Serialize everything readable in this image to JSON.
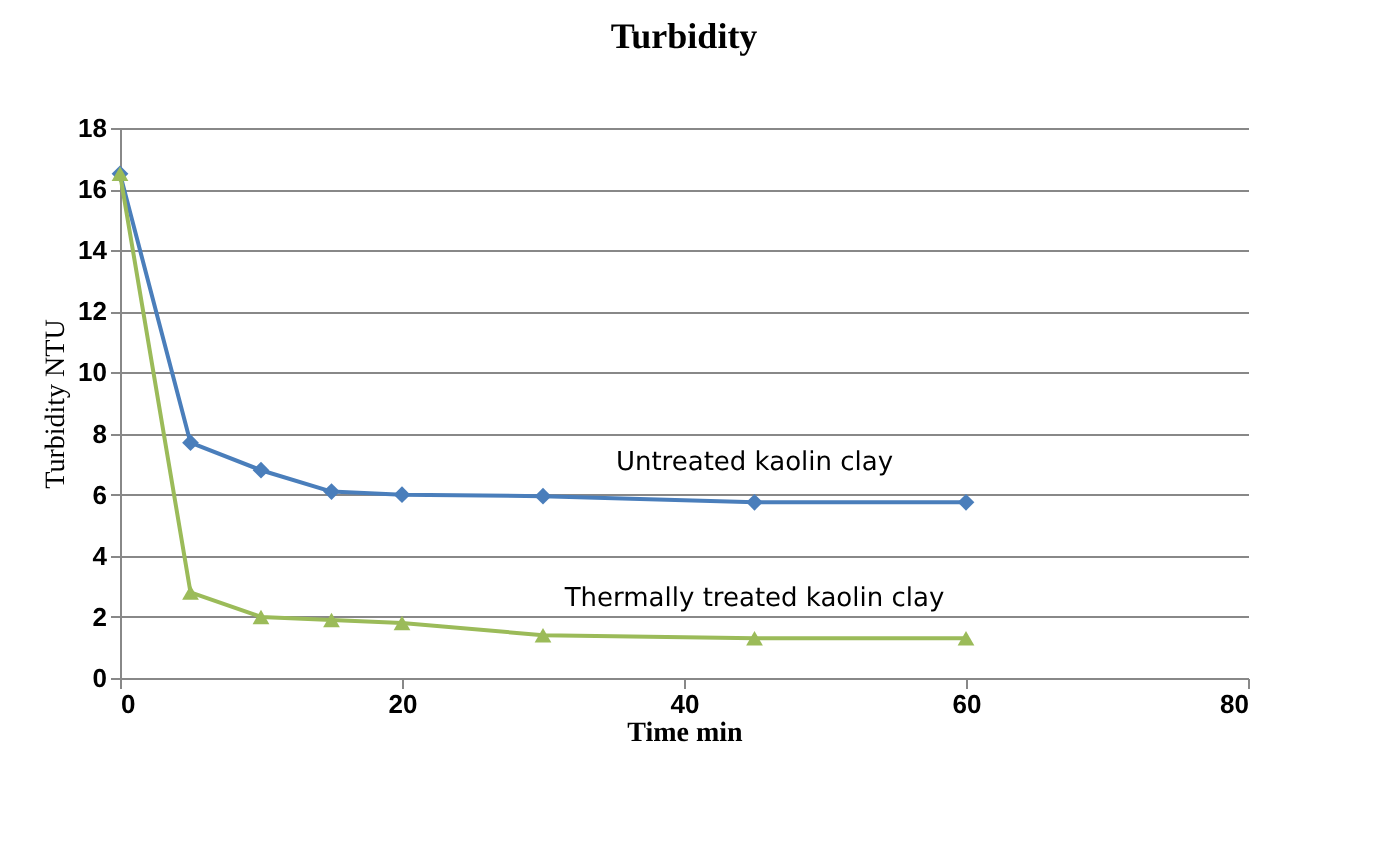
{
  "chart_data": {
    "type": "line",
    "title": "Turbidity",
    "xlabel": "Time min",
    "ylabel": "Turbidity NTU",
    "x": [
      0,
      5,
      10,
      15,
      20,
      30,
      45,
      60
    ],
    "series": [
      {
        "name": "Untreated kaolin clay",
        "color": "#4a7ebb",
        "marker": "diamond",
        "values": [
          16.5,
          7.7,
          6.8,
          6.1,
          6.0,
          5.95,
          5.75,
          5.75
        ]
      },
      {
        "name": "Thermally treated kaolin clay",
        "color": "#9bbb59",
        "marker": "triangle",
        "values": [
          16.5,
          2.8,
          2.0,
          1.9,
          1.8,
          1.4,
          1.3,
          1.3
        ]
      }
    ],
    "xlim": [
      0,
      80
    ],
    "xticks": [
      0,
      20,
      40,
      60,
      80
    ],
    "ylim": [
      0,
      18
    ],
    "yticks": [
      0,
      2,
      4,
      6,
      8,
      10,
      12,
      14,
      16,
      18
    ],
    "grid": "y",
    "legend": false
  }
}
